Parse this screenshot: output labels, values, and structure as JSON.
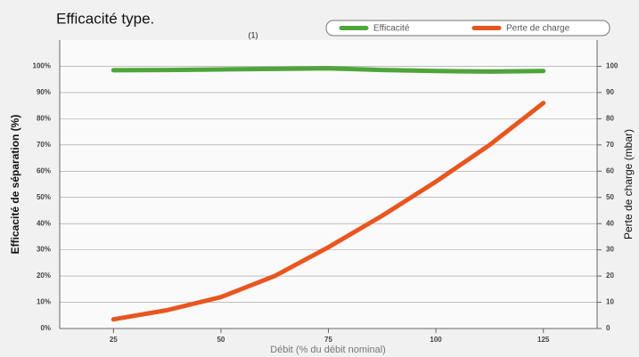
{
  "chart_data": {
    "type": "line",
    "title": "Efficacité type.",
    "note": "(1)",
    "x_label": "Débit (% du débit nominal)",
    "y_label": "Efficacité de séparation (%)",
    "y2_label": "Perte de charge (mbar)",
    "x": [
      25,
      37.5,
      50,
      62.5,
      75,
      87.5,
      100,
      112.5,
      125
    ],
    "series": [
      {
        "name": "Efficacité",
        "color": "#4ea53a",
        "values": [
          98.5,
          98.6,
          98.8,
          99,
          99.2,
          98.6,
          98.2,
          98.0,
          98.2
        ]
      },
      {
        "name": "Perte de charge",
        "color": "#e8561f",
        "axis": "y2",
        "values": [
          3.5,
          7,
          12,
          20,
          31,
          43,
          56,
          70,
          86
        ]
      }
    ],
    "xlim": [
      12.5,
      137.5
    ],
    "xticks": [
      25,
      50,
      75,
      100,
      125
    ],
    "ylim": [
      0,
      110
    ],
    "yticks": [
      {
        "value": 0,
        "label": "0%"
      },
      {
        "value": 10,
        "label": "10%"
      },
      {
        "value": 20,
        "label": "20%"
      },
      {
        "value": 30,
        "label": "30%"
      },
      {
        "value": 40,
        "label": "40%"
      },
      {
        "value": 50,
        "label": "50%"
      },
      {
        "value": 60,
        "label": "60%"
      },
      {
        "value": 70,
        "label": "70%"
      },
      {
        "value": 80,
        "label": "80%"
      },
      {
        "value": 90,
        "label": "90%"
      },
      {
        "value": 100,
        "label": "100%"
      }
    ],
    "y2lim": [
      0,
      110
    ],
    "y2ticks": [
      0,
      10,
      20,
      30,
      40,
      50,
      60,
      70,
      80,
      90,
      100
    ],
    "grid": true,
    "legend": "top-right"
  }
}
